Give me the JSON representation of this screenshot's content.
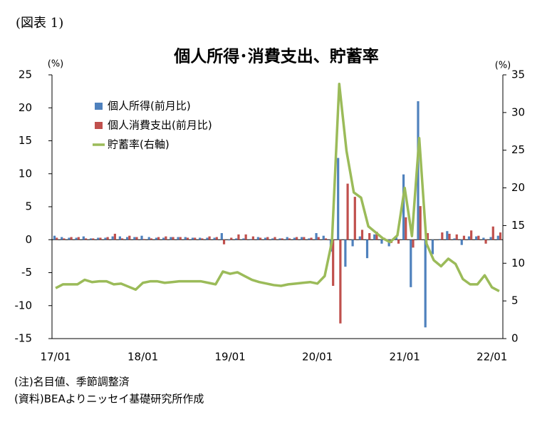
{
  "figure_label": "(図表 1)",
  "chart_data": {
    "type": "bar",
    "title": "個人所得･消費支出、貯蓄率",
    "y_unit": "(%)",
    "y2_unit": "(%)",
    "categories": [
      "17/01",
      null,
      null,
      null,
      null,
      null,
      null,
      null,
      null,
      null,
      null,
      null,
      "18/01",
      null,
      null,
      null,
      null,
      null,
      null,
      null,
      null,
      null,
      null,
      null,
      "19/01",
      null,
      null,
      null,
      null,
      null,
      null,
      null,
      null,
      null,
      null,
      null,
      "20/01",
      null,
      null,
      null,
      null,
      null,
      null,
      null,
      null,
      null,
      null,
      null,
      "21/01",
      null,
      null,
      null,
      null,
      null,
      null,
      null,
      null,
      null,
      null,
      null,
      "22/01",
      null
    ],
    "series": [
      {
        "name": "個人所得(前月比)",
        "color": "#4f81bd",
        "type": "bar",
        "values": [
          0.6,
          0.4,
          0.3,
          0.3,
          0.5,
          0.2,
          0.3,
          0.3,
          0.5,
          0.5,
          0.4,
          0.4,
          0.6,
          0.4,
          0.3,
          0.3,
          0.4,
          0.4,
          0.4,
          0.3,
          0.3,
          0.3,
          0.3,
          1.0,
          -0.1,
          0.2,
          0.2,
          0.1,
          0.4,
          0.3,
          0.2,
          0.2,
          0.4,
          0.3,
          0.4,
          0.2,
          1.0,
          0.6,
          -1.8,
          12.4,
          -4.1,
          -1.0,
          0.5,
          -2.8,
          0.8,
          -0.6,
          -1.0,
          0.4,
          9.9,
          -7.2,
          21.0,
          -13.3,
          -2.2,
          0.1,
          1.3,
          0.2,
          -0.8,
          0.5,
          0.5,
          0.3,
          0.4,
          0.6
        ]
      },
      {
        "name": "個人消費支出(前月比)",
        "color": "#c0504d",
        "type": "bar",
        "values": [
          0.3,
          0.2,
          0.4,
          0.4,
          0.2,
          0.2,
          0.3,
          0.4,
          0.9,
          0.2,
          0.6,
          0.4,
          0.1,
          0.2,
          0.4,
          0.5,
          0.4,
          0.4,
          0.3,
          0.3,
          0.2,
          0.5,
          0.4,
          -0.7,
          0.3,
          0.8,
          0.8,
          0.5,
          0.3,
          0.4,
          0.4,
          0.2,
          0.2,
          0.4,
          0.4,
          0.3,
          0.4,
          0.2,
          -7.0,
          -12.7,
          8.5,
          6.5,
          1.5,
          1.0,
          1.2,
          0.3,
          -0.5,
          -0.6,
          3.4,
          -1.2,
          5.1,
          1.0,
          0.0,
          1.1,
          0.9,
          0.8,
          0.6,
          1.4,
          0.6,
          -0.6,
          2.0,
          1.1
        ]
      },
      {
        "name": "貯蓄率(右軸)",
        "color": "#9bbb59",
        "type": "line",
        "axis": "y2",
        "values": [
          6.7,
          7.2,
          7.2,
          7.2,
          7.8,
          7.5,
          7.6,
          7.6,
          7.2,
          7.3,
          6.9,
          6.5,
          7.4,
          7.6,
          7.6,
          7.4,
          7.5,
          7.6,
          7.6,
          7.6,
          7.6,
          7.4,
          7.2,
          8.9,
          8.6,
          8.8,
          8.3,
          7.8,
          7.5,
          7.3,
          7.1,
          7.0,
          7.2,
          7.3,
          7.4,
          7.5,
          7.3,
          8.3,
          12.9,
          33.8,
          24.9,
          19.4,
          18.7,
          14.9,
          14.1,
          13.3,
          12.8,
          13.7,
          20.0,
          13.6,
          26.6,
          12.6,
          10.4,
          9.6,
          10.6,
          9.9,
          7.9,
          7.2,
          7.2,
          8.4,
          6.8,
          6.3
        ]
      }
    ],
    "ylim": [
      -15,
      25
    ],
    "yticks": [
      -15,
      -10,
      -5,
      0,
      5,
      10,
      15,
      20,
      25
    ],
    "y2lim": [
      0,
      35
    ],
    "y2ticks": [
      0,
      5,
      10,
      15,
      20,
      25,
      30,
      35
    ],
    "notes": [
      "(注)名目値、季節調整済",
      "(資料)BEAよりニッセイ基礎研究所作成"
    ]
  }
}
